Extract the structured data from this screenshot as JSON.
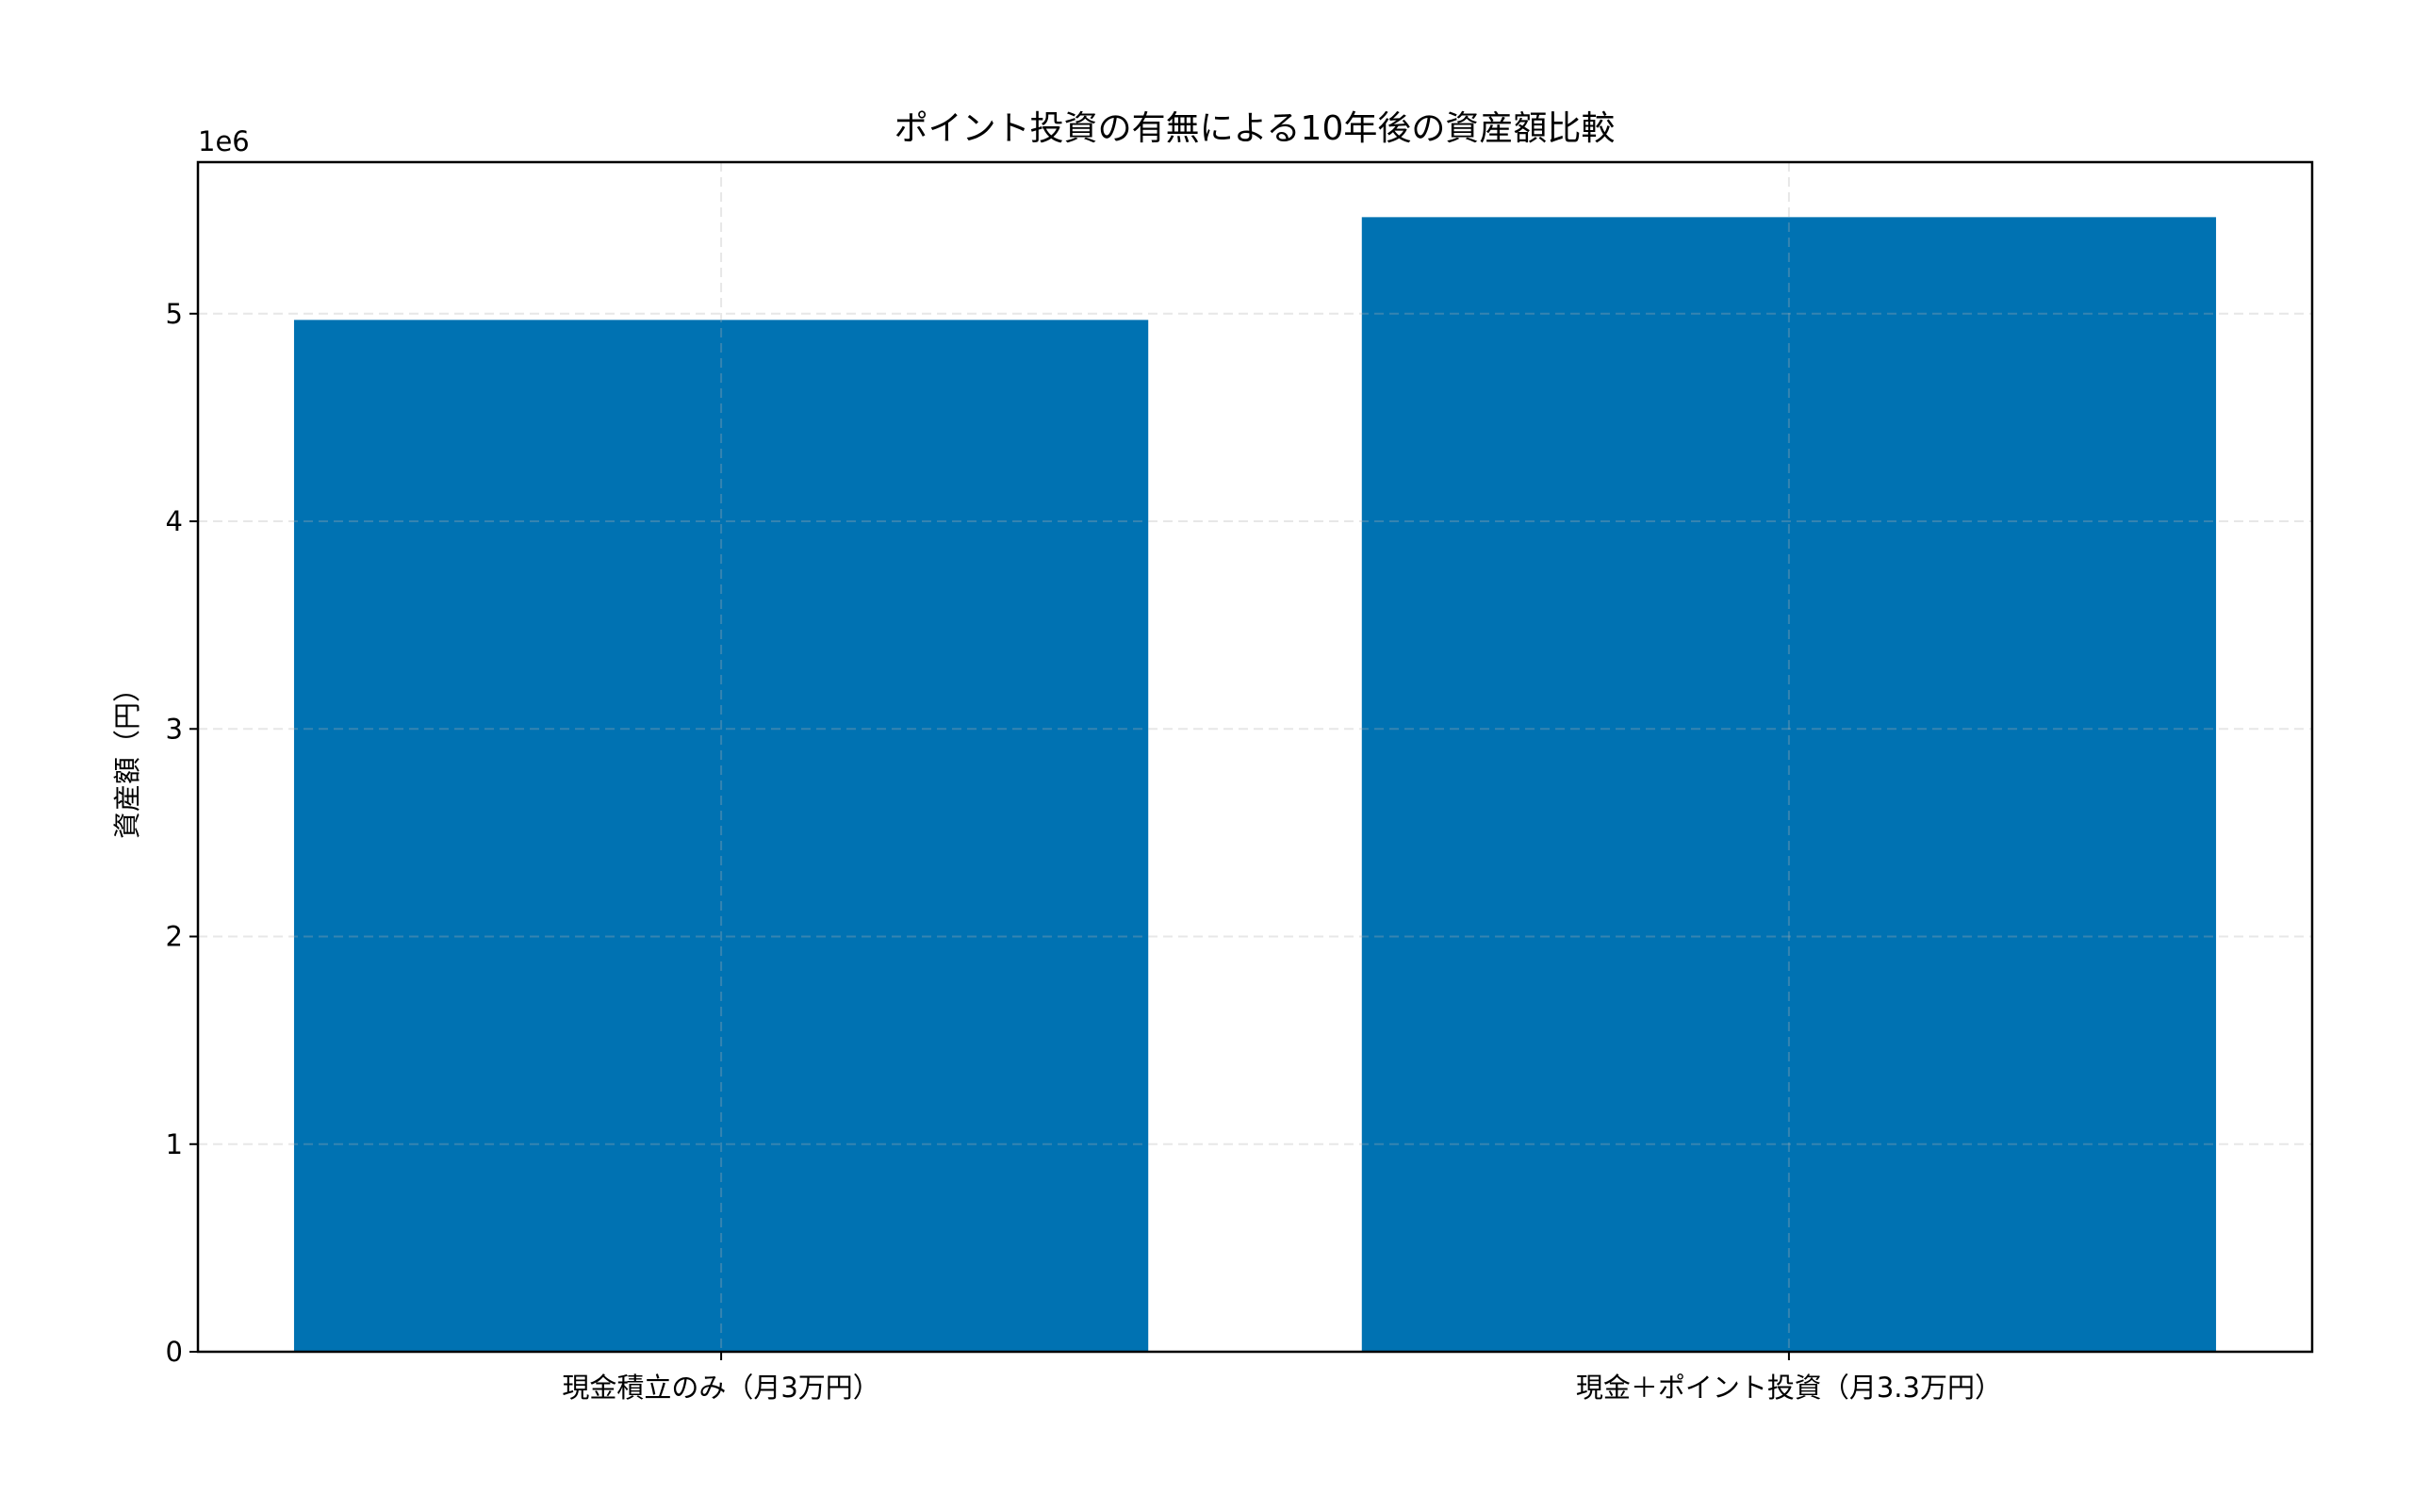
{
  "chart_data": {
    "type": "bar",
    "title": "ポイント投資の有無による10年後の資産額比較",
    "xlabel": "",
    "ylabel": "資産額（円）",
    "y_offset_label": "1e6",
    "categories": [
      "現金積立のみ（月3万円）",
      "現金＋ポイント投資（月3.3万円）"
    ],
    "values": [
      4970000,
      5465000
    ],
    "ylim": [
      0,
      5730000
    ],
    "yticks": [
      0,
      1,
      2,
      3,
      4,
      5
    ],
    "ytick_scale": 1000000,
    "grid": true,
    "grid_style": "dashed",
    "bar_color": "#0072b2"
  }
}
